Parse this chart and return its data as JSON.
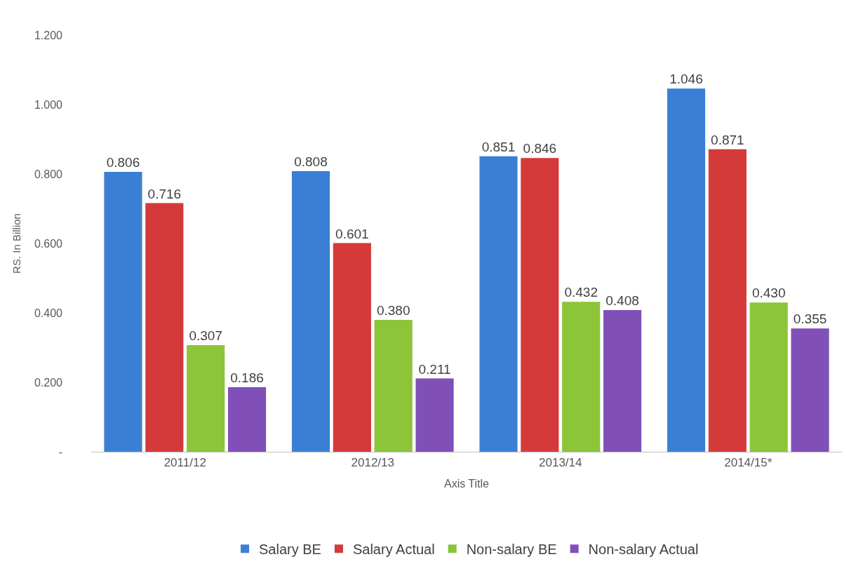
{
  "chart_data": {
    "type": "bar",
    "xlabel": "Axis Title",
    "ylabel": "RS. In Billion",
    "categories": [
      "2011/12",
      "2012/13",
      "2013/14",
      "2014/15*"
    ],
    "series": [
      {
        "name": "Salary BE",
        "color": "#3a7fd5",
        "values": [
          0.806,
          0.808,
          0.851,
          1.046
        ],
        "value_labels": [
          "0.806",
          "0.808",
          "0.851",
          "1.046"
        ]
      },
      {
        "name": "Salary Actual",
        "color": "#d43a3a",
        "values": [
          0.716,
          0.601,
          0.846,
          0.871
        ],
        "value_labels": [
          "0.716",
          "0.601",
          "0.846",
          "0.871"
        ]
      },
      {
        "name": "Non-salary BE",
        "color": "#8cc43a",
        "values": [
          0.307,
          0.38,
          0.432,
          0.43
        ],
        "value_labels": [
          "0.307",
          "0.380",
          "0.432",
          "0.430"
        ]
      },
      {
        "name": "Non-salary Actual",
        "color": "#8050b8",
        "values": [
          0.186,
          0.211,
          0.408,
          0.355
        ],
        "value_labels": [
          "0.186",
          "0.211",
          "0.408",
          "0.355"
        ]
      }
    ],
    "ylim": [
      0,
      1.2
    ],
    "yticks": [
      {
        "value": 0,
        "label": "-"
      },
      {
        "value": 0.2,
        "label": "0.200"
      },
      {
        "value": 0.4,
        "label": "0.400"
      },
      {
        "value": 0.6,
        "label": "0.600"
      },
      {
        "value": 0.8,
        "label": "0.800"
      },
      {
        "value": 1.0,
        "label": "1.000"
      },
      {
        "value": 1.2,
        "label": "1.200"
      }
    ],
    "legend": "bottom"
  }
}
